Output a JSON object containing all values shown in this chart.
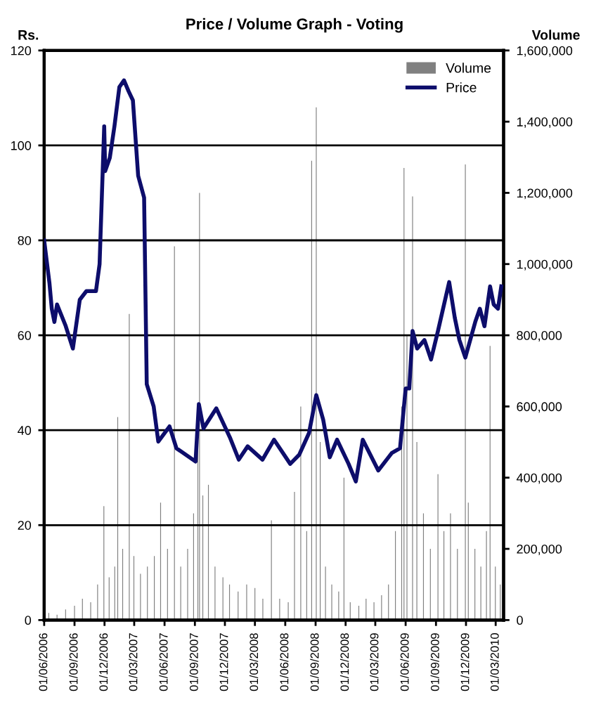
{
  "chart_data": {
    "type": "line",
    "title": "Price / Volume Graph - Voting",
    "ylabel": "Rs.",
    "y2label": "Volume",
    "xlim": [
      "2006-06-01",
      "2010-03-25"
    ],
    "xticks": [
      {
        "value": "2006-06-01",
        "label": "01/06/2006"
      },
      {
        "value": "2006-09-01",
        "label": "01/09/2006"
      },
      {
        "value": "2006-12-01",
        "label": "01/12/2006"
      },
      {
        "value": "2007-03-01",
        "label": "01/03/2007"
      },
      {
        "value": "2007-06-01",
        "label": "01/06/2007"
      },
      {
        "value": "2007-09-01",
        "label": "01/09/2007"
      },
      {
        "value": "2007-12-01",
        "label": "01/12/2007"
      },
      {
        "value": "2008-03-01",
        "label": "01/03/2008"
      },
      {
        "value": "2008-06-01",
        "label": "01/06/2008"
      },
      {
        "value": "2008-09-01",
        "label": "01/09/2008"
      },
      {
        "value": "2008-12-01",
        "label": "01/12/2008"
      },
      {
        "value": "2009-03-01",
        "label": "01/03/2009"
      },
      {
        "value": "2009-06-01",
        "label": "01/06/2009"
      },
      {
        "value": "2009-09-01",
        "label": "01/09/2009"
      },
      {
        "value": "2009-12-01",
        "label": "01/12/2009"
      },
      {
        "value": "2010-03-01",
        "label": "01/03/2010"
      }
    ],
    "ylim": [
      0,
      120
    ],
    "yticks": [
      0,
      20,
      40,
      60,
      80,
      100,
      120
    ],
    "y2lim": [
      0,
      1600000
    ],
    "y2ticks": [
      {
        "value": 0,
        "label": "0"
      },
      {
        "value": 200000,
        "label": "200,000"
      },
      {
        "value": 400000,
        "label": "400,000"
      },
      {
        "value": 600000,
        "label": "600,000"
      },
      {
        "value": 800000,
        "label": "800,000"
      },
      {
        "value": 1000000,
        "label": "1,000,000"
      },
      {
        "value": 1200000,
        "label": "1,200,000"
      },
      {
        "value": 1400000,
        "label": "1,400,000"
      },
      {
        "value": 1600000,
        "label": "1,600,000"
      }
    ],
    "grid": "y",
    "legend": "top right",
    "series": [
      {
        "name": "Volume",
        "type": "bar",
        "axis": "y2",
        "color": "#808080",
        "x": [
          "2006-06-15",
          "2006-07-10",
          "2006-08-05",
          "2006-09-01",
          "2006-09-25",
          "2006-10-20",
          "2006-11-10",
          "2006-11-29",
          "2006-12-15",
          "2007-01-01",
          "2007-01-10",
          "2007-01-25",
          "2007-02-14",
          "2007-02-28",
          "2007-03-20",
          "2007-04-10",
          "2007-05-01",
          "2007-05-20",
          "2007-06-10",
          "2007-07-01",
          "2007-07-20",
          "2007-08-10",
          "2007-08-28",
          "2007-09-10",
          "2007-09-15",
          "2007-09-25",
          "2007-10-12",
          "2007-11-01",
          "2007-11-25",
          "2007-12-15",
          "2008-01-10",
          "2008-02-05",
          "2008-03-01",
          "2008-03-25",
          "2008-04-20",
          "2008-05-15",
          "2008-06-10",
          "2008-06-29",
          "2008-07-18",
          "2008-08-05",
          "2008-08-20",
          "2008-09-03",
          "2008-09-15",
          "2008-10-01",
          "2008-10-20",
          "2008-11-10",
          "2008-11-26",
          "2008-12-15",
          "2009-01-10",
          "2009-02-01",
          "2009-02-25",
          "2009-03-20",
          "2009-04-10",
          "2009-05-01",
          "2009-05-20",
          "2009-05-27",
          "2009-06-05",
          "2009-06-22",
          "2009-07-05",
          "2009-07-25",
          "2009-08-15",
          "2009-09-07",
          "2009-09-25",
          "2009-10-15",
          "2009-11-05",
          "2009-11-29",
          "2009-12-08",
          "2009-12-28",
          "2010-01-15",
          "2010-02-01",
          "2010-02-12",
          "2010-02-28",
          "2010-03-15"
        ],
        "values": [
          20000,
          15000,
          30000,
          40000,
          60000,
          50000,
          100000,
          320000,
          120000,
          150000,
          570000,
          200000,
          860000,
          180000,
          130000,
          150000,
          180000,
          330000,
          200000,
          1050000,
          150000,
          200000,
          300000,
          500000,
          1200000,
          350000,
          380000,
          150000,
          120000,
          100000,
          80000,
          100000,
          90000,
          60000,
          280000,
          60000,
          50000,
          360000,
          600000,
          250000,
          1290000,
          1440000,
          500000,
          150000,
          100000,
          80000,
          400000,
          50000,
          40000,
          60000,
          50000,
          70000,
          100000,
          250000,
          600000,
          1270000,
          800000,
          1190000,
          500000,
          300000,
          200000,
          410000,
          250000,
          300000,
          200000,
          1280000,
          330000,
          200000,
          150000,
          250000,
          770000,
          150000,
          100000
        ]
      },
      {
        "name": "Price",
        "color": "#0d0d6b",
        "x": [
          "2006-06-01",
          "2006-06-17",
          "2006-06-24",
          "2006-07-02",
          "2006-07-10",
          "2006-08-05",
          "2006-08-27",
          "2006-09-17",
          "2006-10-07",
          "2006-11-05",
          "2006-11-16",
          "2006-11-30",
          "2006-12-03",
          "2006-12-17",
          "2006-12-31",
          "2007-01-15",
          "2007-01-29",
          "2007-02-12",
          "2007-02-25",
          "2007-03-13",
          "2007-03-31",
          "2007-04-08",
          "2007-04-29",
          "2007-05-13",
          "2007-06-16",
          "2007-07-07",
          "2007-09-03",
          "2007-09-13",
          "2007-09-27",
          "2007-11-05",
          "2007-12-16",
          "2008-01-12",
          "2008-02-08",
          "2008-03-24",
          "2008-04-28",
          "2008-06-16",
          "2008-07-13",
          "2008-08-12",
          "2008-09-03",
          "2008-09-24",
          "2008-10-14",
          "2008-11-05",
          "2008-12-10",
          "2009-01-01",
          "2009-01-22",
          "2009-03-10",
          "2009-04-20",
          "2009-05-15",
          "2009-06-01",
          "2009-06-12",
          "2009-06-22",
          "2009-07-06",
          "2009-07-28",
          "2009-08-17",
          "2009-09-07",
          "2009-10-11",
          "2009-10-28",
          "2009-11-11",
          "2009-11-29",
          "2009-12-29",
          "2010-01-12",
          "2010-01-26",
          "2010-02-12",
          "2010-02-23",
          "2010-03-08",
          "2010-03-18"
        ],
        "values": [
          80,
          71,
          65.6,
          62.8,
          66.5,
          62,
          57.2,
          67.5,
          69.3,
          69.3,
          75,
          104,
          94.6,
          97.4,
          104,
          112.3,
          113.7,
          111.4,
          109.5,
          93.6,
          89,
          49.7,
          45,
          37.6,
          40.8,
          36.2,
          33.4,
          45.5,
          40.4,
          44.6,
          38.5,
          33.8,
          36.6,
          33.8,
          38,
          32.9,
          34.8,
          39.4,
          47.4,
          42.2,
          34.3,
          38,
          32.9,
          29.2,
          38,
          31.5,
          35.2,
          36.2,
          48.8,
          48.8,
          60.9,
          57.2,
          59,
          54.9,
          60.9,
          71.2,
          63.7,
          59,
          55.3,
          62.8,
          65.6,
          61.9,
          70.3,
          66.5,
          65.6,
          70.3
        ]
      }
    ]
  }
}
